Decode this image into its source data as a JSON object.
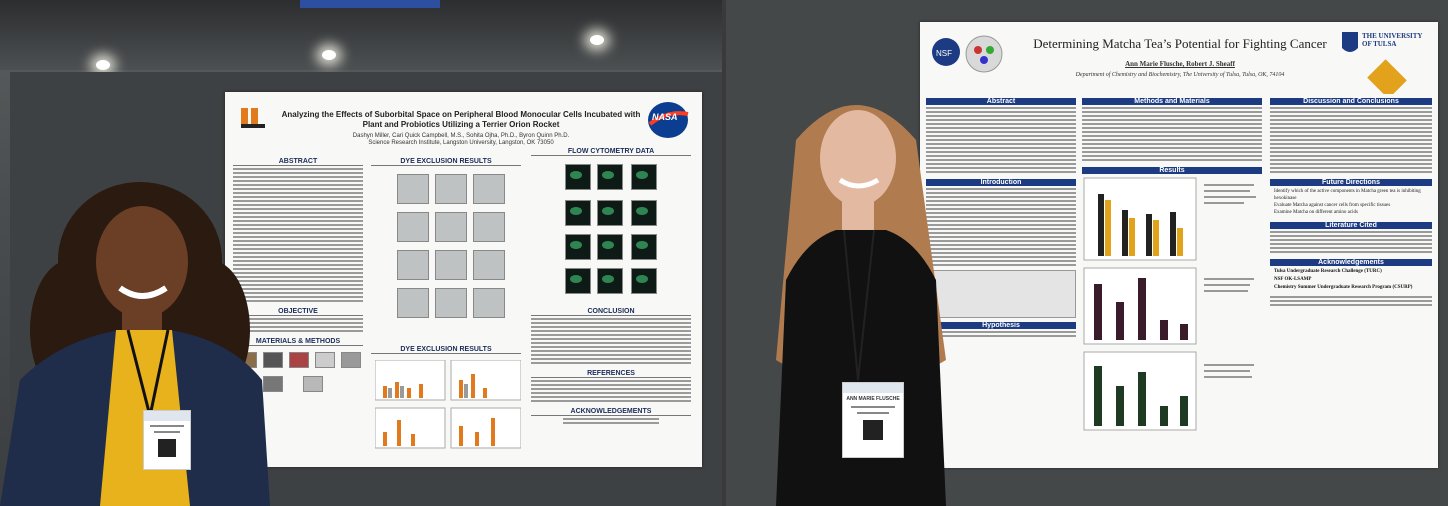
{
  "left_poster": {
    "title": "Analyzing the Effects of Suborbital Space on Peripheral Blood Monocular Cells Incubated with Plant and Probiotics Utilizing a Terrier Orion Rocket",
    "authors": "Dashyn Miller, Cari Quick Campbell, M.S., Sohita Ojha, Ph.D., Byron Quinn Ph.D.",
    "affiliation": "Science Research Institute, Langston University, Langston, OK 73050",
    "logo_text": "NASA",
    "sections": {
      "abstract": "ABSTRACT",
      "objective": "OBJECTIVE",
      "materials": "MATERIALS & METHODS",
      "dye1": "DYE EXCLUSION RESULTS",
      "dye2": "DYE EXCLUSION RESULTS",
      "flow": "FLOW CYTOMETRY DATA",
      "conclusion": "CONCLUSION",
      "references": "REFERENCES",
      "ack": "ACKNOWLEDGEMENTS"
    }
  },
  "right_poster": {
    "title": "Determining Matcha Tea’s Potential for Fighting Cancer",
    "authors": "Ann Marie Flusche, Robert J. Sheaff",
    "affiliation": "Department of Chemistry and Biochemistry, The University of Tulsa, Tulsa, OK, 74104",
    "university": "THE UNIVERSITY OF TULSA",
    "sections": {
      "abstract": "Abstract",
      "introduction": "Introduction",
      "hypothesis": "Hypothesis",
      "methods": "Methods and Materials",
      "results": "Results",
      "discussion": "Discussion and Conclusions",
      "future": "Future Directions",
      "literature": "Literature Cited",
      "ack": "Acknowledgements"
    },
    "ack_items": [
      "Tulsa Undergraduate Research Challenge (TURC)",
      "NSF OK-LSAMP",
      "Chemistry Summer Undergraduate Research Program (CSURP)"
    ],
    "future_items": [
      "Identify which of the active components in Matcha green tea is inhibiting hexokinase",
      "Evaluate Matcha against cancer cells from specific tissues",
      "Examine Matcha on different amino acids"
    ]
  },
  "badges": {
    "right_name": "ANN MARIE FLUSCHE"
  },
  "colors": {
    "navy": "#1d3b82",
    "mustard": "#e2a21b",
    "poster_bg": "#f8f8f6"
  }
}
